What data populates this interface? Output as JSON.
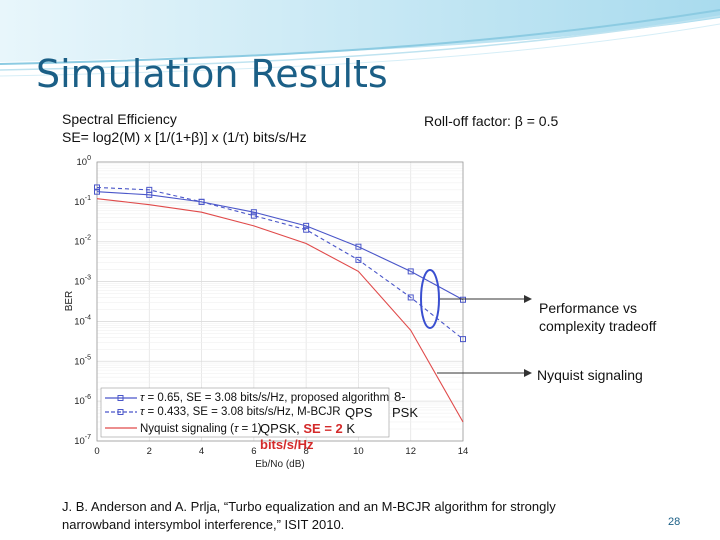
{
  "slide": {
    "title": "Simulation Results",
    "subtitle_line1": "Spectral Efficiency",
    "subtitle_line2": "SE= log2(M) x [1/(1+β)] x (1/τ)  bits/s/Hz",
    "rolloff": "Roll-off factor: β = 0.5",
    "callout_tradeoff_line1": "Performance vs",
    "callout_tradeoff_line2": "complexity tradeoff",
    "callout_nyquist": "Nyquist signaling",
    "label_8psk_line1": "8-",
    "label_8psk_line2": "PSK",
    "label_qps": "QPS",
    "label_qpsk_prefix": "QPSK, ",
    "label_qpsk_se": "SE = 2",
    "label_qpsk_k": " K",
    "label_qpsk_units": "bits/s/Hz",
    "citation_line1": "J. B. Anderson and A. Prlja, “Turbo equalization and an M-BCJR algorithm for strongly",
    "citation_line2": "narrowband intersymbol interference,” ISIT 2010.",
    "page_number": "28"
  },
  "colors": {
    "title": "#1b5f86",
    "blue_series": "#4a56c9",
    "red_series": "#e04a4a",
    "banner_light": "#bfe3f0",
    "banner_mid": "#8ccbe2"
  },
  "chart_data": {
    "type": "line",
    "xlabel": "Eb/No (dB)",
    "ylabel": "BER",
    "xlim": [
      0,
      14
    ],
    "ylim_log10": [
      -7,
      0
    ],
    "log_y": true,
    "grid": true,
    "legend_position": "bottom-left",
    "x_ticks": [
      "0",
      "2",
      "4",
      "6",
      "8",
      "10",
      "12",
      "14"
    ],
    "y_tick_labels": [
      "10",
      "10",
      "10",
      "10",
      "10",
      "10",
      "10",
      "10"
    ],
    "y_tick_exponents": [
      "0",
      "-1",
      "-2",
      "-3",
      "-4",
      "-5",
      "-6",
      "-7"
    ],
    "series": [
      {
        "name_tau_symbol": "τ",
        "name": " = 0.65, SE = 3.08 bits/s/Hz, proposed algorithm",
        "style": "solid-square",
        "color": "#4a56c9",
        "x": [
          0,
          2,
          4,
          6,
          8,
          10,
          12,
          14
        ],
        "y": [
          0.18,
          0.15,
          0.1,
          0.055,
          0.025,
          0.0075,
          0.0018,
          0.00035
        ]
      },
      {
        "name_tau_symbol": "τ",
        "name": " = 0.433, SE = 3.08 bits/s/Hz, M-BCJR",
        "style": "dashed-square",
        "color": "#4a56c9",
        "x": [
          0,
          2,
          4,
          6,
          8,
          10,
          12,
          14
        ],
        "y": [
          0.23,
          0.2,
          0.1,
          0.045,
          0.02,
          0.0035,
          0.0004,
          3.6e-05
        ]
      },
      {
        "name": "Nyquist signaling (",
        "name_tau_symbol": "τ",
        "name_suffix": " = 1)",
        "style": "solid",
        "color": "#e04a4a",
        "x": [
          0,
          2,
          4,
          6,
          8,
          10,
          12,
          14
        ],
        "y": [
          0.12,
          0.085,
          0.055,
          0.025,
          0.009,
          0.0018,
          6e-05,
          3e-07
        ]
      }
    ]
  }
}
